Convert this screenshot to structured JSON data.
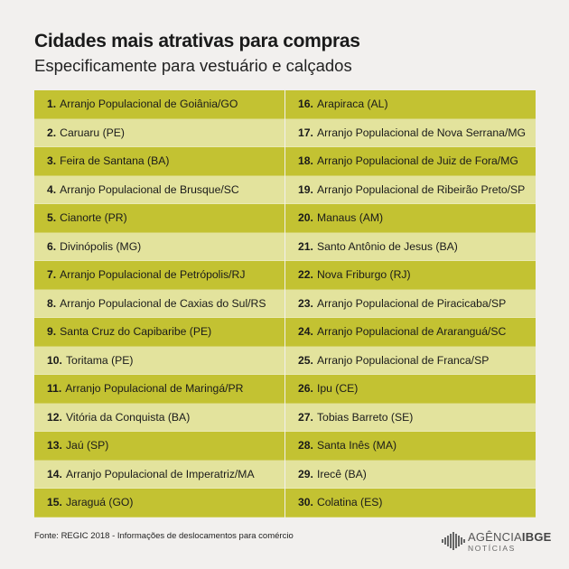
{
  "header": {
    "title": "Cidades mais atrativas para compras",
    "subtitle": "Especificamente para vestuário e calçados"
  },
  "left_column": [
    {
      "num": "1.",
      "name": "Arranjo Populacional de Goiânia/GO"
    },
    {
      "num": "2.",
      "name": "Caruaru (PE)"
    },
    {
      "num": "3.",
      "name": "Feira de Santana (BA)"
    },
    {
      "num": "4.",
      "name": "Arranjo Populacional de Brusque/SC"
    },
    {
      "num": "5.",
      "name": "Cianorte (PR)"
    },
    {
      "num": "6.",
      "name": "Divinópolis (MG)"
    },
    {
      "num": "7.",
      "name": "Arranjo Populacional de Petrópolis/RJ"
    },
    {
      "num": "8.",
      "name": "Arranjo Populacional de Caxias do Sul/RS"
    },
    {
      "num": "9.",
      "name": "Santa Cruz do Capibaribe (PE)"
    },
    {
      "num": "10.",
      "name": "Toritama (PE)"
    },
    {
      "num": "11.",
      "name": "Arranjo Populacional de Maringá/PR"
    },
    {
      "num": "12.",
      "name": "Vitória da Conquista (BA)"
    },
    {
      "num": "13.",
      "name": "Jaú (SP)"
    },
    {
      "num": "14.",
      "name": "Arranjo Populacional de Imperatriz/MA"
    },
    {
      "num": "15.",
      "name": "Jaraguá (GO)"
    }
  ],
  "right_column": [
    {
      "num": "16.",
      "name": "Arapiraca (AL)"
    },
    {
      "num": "17.",
      "name": "Arranjo Populacional de Nova Serrana/MG"
    },
    {
      "num": "18.",
      "name": "Arranjo Populacional de Juiz de Fora/MG"
    },
    {
      "num": "19.",
      "name": "Arranjo Populacional de Ribeirão Preto/SP"
    },
    {
      "num": "20.",
      "name": "Manaus (AM)"
    },
    {
      "num": "21.",
      "name": "Santo Antônio de Jesus (BA)"
    },
    {
      "num": "22.",
      "name": "Nova Friburgo (RJ)"
    },
    {
      "num": "23.",
      "name": "Arranjo Populacional de Piracicaba/SP"
    },
    {
      "num": "24.",
      "name": "Arranjo Populacional de Araranguá/SC"
    },
    {
      "num": "25.",
      "name": "Arranjo Populacional de Franca/SP"
    },
    {
      "num": "26.",
      "name": "Ipu (CE)"
    },
    {
      "num": "27.",
      "name": "Tobias Barreto (SE)"
    },
    {
      "num": "28.",
      "name": "Santa Inês (MA)"
    },
    {
      "num": "29.",
      "name": "Irecê (BA)"
    },
    {
      "num": "30.",
      "name": "Colatina (ES)"
    }
  ],
  "colors": {
    "row_dark": "#c3c232",
    "row_light": "#e3e39d",
    "background": "#f2f0ee"
  },
  "footer": {
    "source": "Fonte: REGIC 2018 - Informações de deslocamentos para comércio",
    "logo_agencia": "AGÊNCIA",
    "logo_ibge": "IBGE",
    "logo_noticias": "NOTÍCIAS"
  }
}
